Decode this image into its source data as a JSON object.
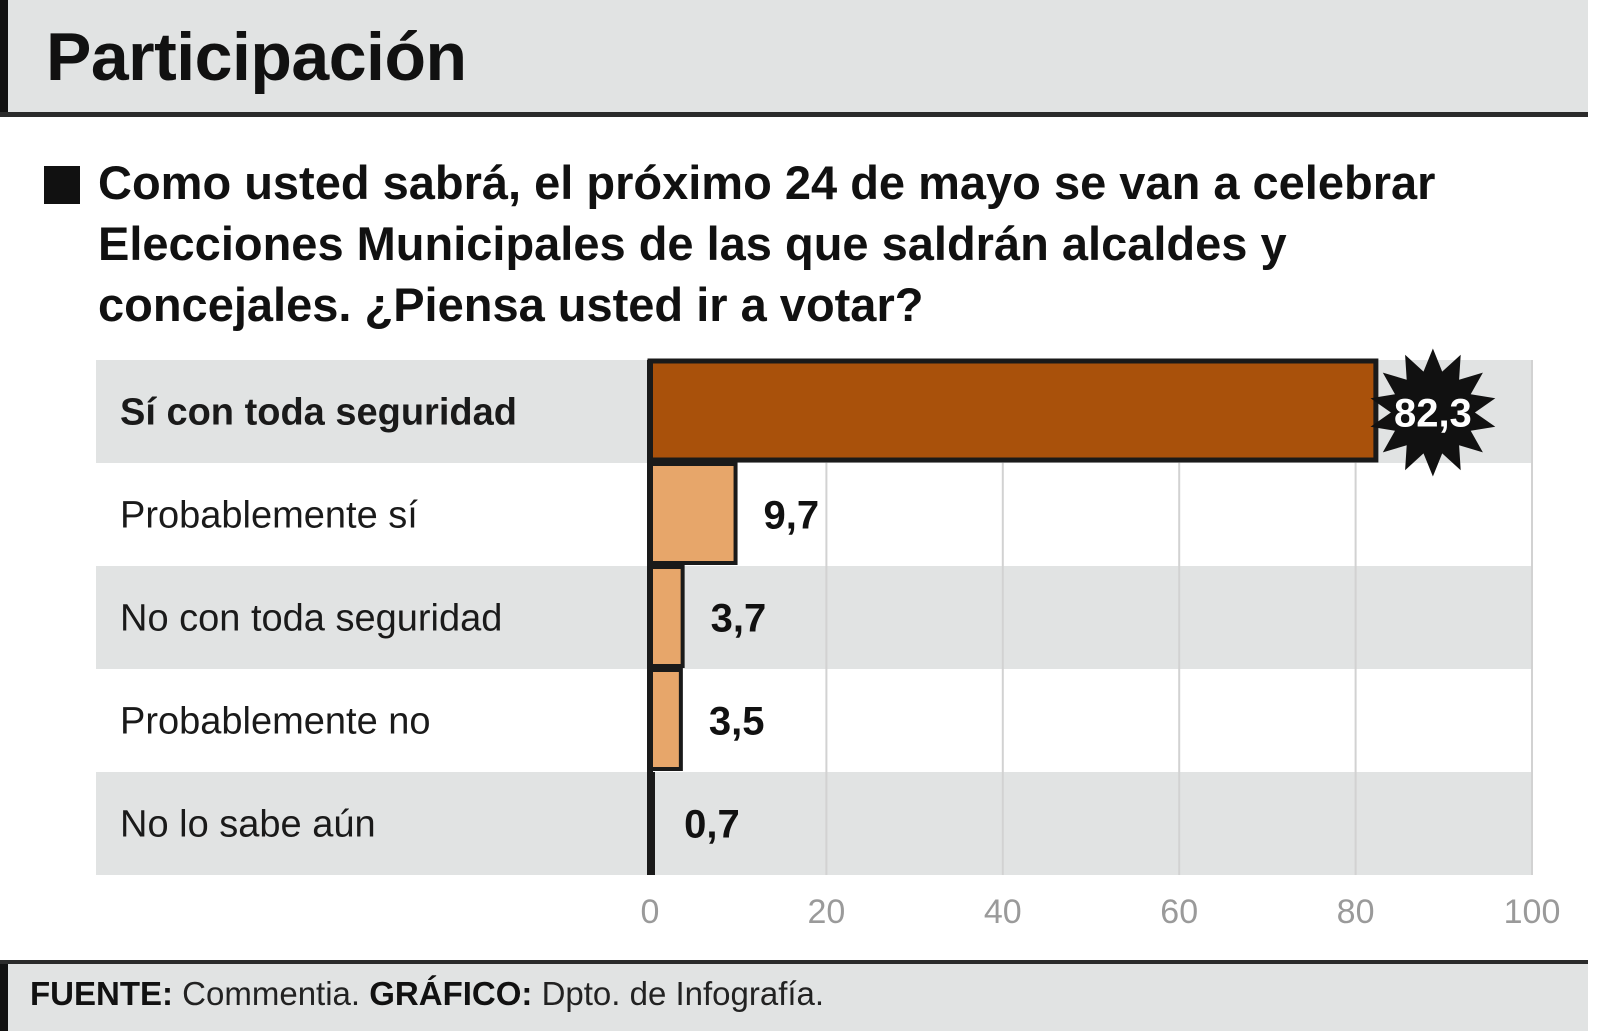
{
  "header": {
    "title": "Participación"
  },
  "question": "Como usted sabrá, el próximo 24 de mayo se van a celebrar Elecciones Municipales de las que saldrán alcaldes y concejales. ¿Piensa usted ir a votar?",
  "chart_data": {
    "type": "bar",
    "orientation": "horizontal",
    "categories": [
      "Sí con toda seguridad",
      "Probablemente sí",
      "No con toda seguridad",
      "Probablemente no",
      "No lo sabe aún"
    ],
    "values": [
      82.3,
      9.7,
      3.7,
      3.5,
      0.7
    ],
    "value_labels": [
      "82,3",
      "9,7",
      "3,7",
      "3,5",
      "0,7"
    ],
    "xlim": [
      0,
      100
    ],
    "x_ticks": [
      0,
      20,
      40,
      60,
      80,
      100
    ],
    "x_tick_labels": [
      "0",
      "20",
      "40",
      "60",
      "80",
      "100"
    ],
    "grid": true,
    "highlight_index": 0,
    "colors": {
      "highlight_bar": "#a9510b",
      "bar": "#e7a66a",
      "bar_outline": "#1a1a1a",
      "row_shade": "#e1e3e3",
      "row_plain": "#ffffff",
      "grid": "#d2d2d2",
      "tick_label": "#9a9a9a",
      "burst": "#111111"
    }
  },
  "footer": {
    "source_label": "FUENTE:",
    "source_value": "Commentia.",
    "graphic_label": "GRÁFICO:",
    "graphic_value": "Dpto. de Infografía."
  }
}
